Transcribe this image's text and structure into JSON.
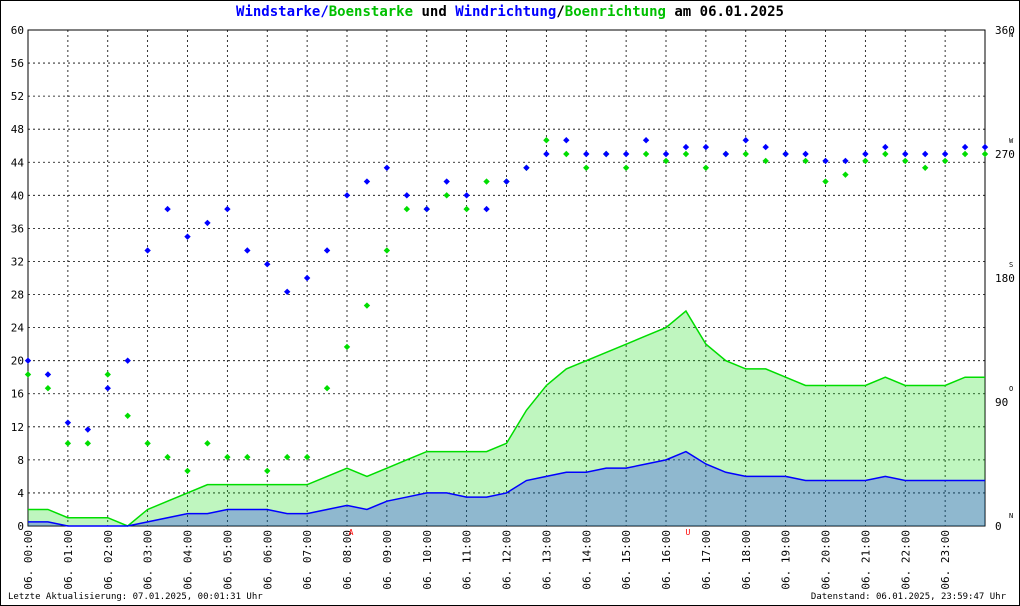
{
  "title": {
    "part1": "Windstarke",
    "sep1": "/",
    "part2": "Boenstarke",
    "mid": " und ",
    "part3": "Windrichtung",
    "sep2": "/",
    "part4": "Boenrichtung",
    "suffix": " am 06.01.2025"
  },
  "colors": {
    "wind": "#0000ff",
    "gust": "#00dd00",
    "grid": "#000000",
    "marker": "#ff0000",
    "text": "#000000"
  },
  "footer": {
    "left": "Letzte Aktualisierung: 07.01.2025, 00:01:31 Uhr",
    "right": "Datenstand: 06.01.2025, 23:59:47 Uhr"
  },
  "chart_data": {
    "type": "scatter",
    "ylim": [
      0,
      60
    ],
    "y_ticks": [
      "0",
      "4",
      "8",
      "12",
      "16",
      "20",
      "24",
      "28",
      "32",
      "36",
      "40",
      "44",
      "48",
      "52",
      "56",
      "60"
    ],
    "y2lim": [
      0,
      360
    ],
    "y2_ticks": [
      {
        "value": 0,
        "label": "0",
        "dir": "N"
      },
      {
        "value": 90,
        "label": "90",
        "dir": "O"
      },
      {
        "value": 180,
        "label": "180",
        "dir": "S"
      },
      {
        "value": 270,
        "label": "270",
        "dir": "W"
      },
      {
        "value": 360,
        "label": "360",
        "dir": "N"
      }
    ],
    "x_labels": [
      "06. 00:00",
      "06. 01:00",
      "06. 02:00",
      "06. 03:00",
      "06. 04:00",
      "06. 05:00",
      "06. 06:00",
      "06. 07:00",
      "06. 08:00",
      "06. 09:00",
      "06. 10:00",
      "06. 11:00",
      "06. 12:00",
      "06. 13:00",
      "06. 14:00",
      "06. 15:00",
      "06. 16:00",
      "06. 17:00",
      "06. 18:00",
      "06. 19:00",
      "06. 20:00",
      "06. 21:00",
      "06. 22:00",
      "06. 23:00"
    ],
    "x_markers": [
      {
        "hour": 8.1,
        "label": "A"
      },
      {
        "hour": 16.55,
        "label": "U"
      }
    ],
    "grid": true,
    "series": [
      {
        "name": "Windstarke",
        "color": "#0000ff",
        "kind": "line",
        "hours": [
          0,
          0.5,
          1,
          1.5,
          2,
          2.5,
          3,
          3.5,
          4,
          4.5,
          5,
          5.5,
          6,
          6.5,
          7,
          7.5,
          8,
          8.5,
          9,
          9.5,
          10,
          10.5,
          11,
          11.5,
          12,
          12.5,
          13,
          13.5,
          14,
          14.5,
          15,
          15.5,
          16,
          16.5,
          17,
          17.5,
          18,
          18.5,
          19,
          19.5,
          20,
          20.5,
          21,
          21.5,
          22,
          22.5,
          23,
          23.5,
          24
        ],
        "values": [
          0.5,
          0.5,
          0,
          0,
          0,
          0,
          0.5,
          1,
          1.5,
          1.5,
          2,
          2,
          2,
          1.5,
          1.5,
          2,
          2.5,
          2,
          3,
          3.5,
          4,
          4,
          3.5,
          3.5,
          4,
          5.5,
          6,
          6.5,
          6.5,
          7,
          7,
          7.5,
          8,
          9,
          7.5,
          6.5,
          6,
          6,
          6,
          5.5,
          5.5,
          5.5,
          5.5,
          6,
          5.5,
          5.5,
          5.5,
          5.5,
          5.5
        ]
      },
      {
        "name": "Boenstarke",
        "color": "#00dd00",
        "kind": "line",
        "hours": [
          0,
          0.5,
          1,
          1.5,
          2,
          2.5,
          3,
          3.5,
          4,
          4.5,
          5,
          5.5,
          6,
          6.5,
          7,
          7.5,
          8,
          8.5,
          9,
          9.5,
          10,
          10.5,
          11,
          11.5,
          12,
          12.5,
          13,
          13.5,
          14,
          14.5,
          15,
          15.5,
          16,
          16.5,
          17,
          17.5,
          18,
          18.5,
          19,
          19.5,
          20,
          20.5,
          21,
          21.5,
          22,
          22.5,
          23,
          23.5,
          24
        ],
        "values": [
          2,
          2,
          1,
          1,
          1,
          0,
          2,
          3,
          4,
          5,
          5,
          5,
          5,
          5,
          5,
          6,
          7,
          6,
          7,
          8,
          9,
          9,
          9,
          9,
          10,
          14,
          17,
          19,
          20,
          21,
          22,
          23,
          24,
          26,
          22,
          20,
          19,
          19,
          18,
          17,
          17,
          17,
          17,
          18,
          17,
          17,
          17,
          18,
          18
        ]
      },
      {
        "name": "Windrichtung",
        "color": "#0000ff",
        "kind": "scatter",
        "hours": [
          0,
          0.5,
          1,
          1.5,
          2,
          2.5,
          3,
          3.5,
          4,
          4.5,
          5,
          5.5,
          6,
          6.5,
          7,
          7.5,
          8,
          8.5,
          9,
          9.5,
          10,
          10.5,
          11,
          11.5,
          12,
          12.5,
          13,
          13.5,
          14,
          14.5,
          15,
          15.5,
          16,
          16.5,
          17,
          17.5,
          18,
          18.5,
          19,
          19.5,
          20,
          20.5,
          21,
          21.5,
          22,
          22.5,
          23,
          23.5,
          24
        ],
        "values": [
          120,
          110,
          75,
          70,
          100,
          120,
          200,
          230,
          210,
          220,
          230,
          200,
          190,
          170,
          180,
          200,
          240,
          250,
          260,
          240,
          230,
          250,
          240,
          230,
          250,
          260,
          270,
          280,
          270,
          270,
          270,
          280,
          270,
          275,
          275,
          270,
          280,
          275,
          270,
          270,
          265,
          265,
          270,
          275,
          270,
          270,
          270,
          275,
          275
        ]
      },
      {
        "name": "Boenrichtung",
        "color": "#00dd00",
        "kind": "scatter",
        "hours": [
          0,
          0.5,
          1,
          1.5,
          2,
          2.5,
          3,
          3.5,
          4,
          4.5,
          5,
          5.5,
          6,
          6.5,
          7,
          7.5,
          8,
          8.5,
          9,
          9.5,
          10,
          10.5,
          11,
          11.5,
          12,
          12.5,
          13,
          13.5,
          14,
          14.5,
          15,
          15.5,
          16,
          16.5,
          17,
          17.5,
          18,
          18.5,
          19,
          19.5,
          20,
          20.5,
          21,
          21.5,
          22,
          22.5,
          23,
          23.5,
          24
        ],
        "values": [
          110,
          100,
          60,
          60,
          110,
          80,
          60,
          50,
          40,
          60,
          50,
          50,
          40,
          50,
          50,
          100,
          130,
          160,
          200,
          230,
          230,
          240,
          230,
          250,
          250,
          260,
          280,
          270,
          260,
          270,
          260,
          270,
          265,
          270,
          260,
          270,
          270,
          265,
          270,
          265,
          250,
          255,
          265,
          270,
          265,
          260,
          265,
          270,
          270
        ]
      }
    ]
  }
}
